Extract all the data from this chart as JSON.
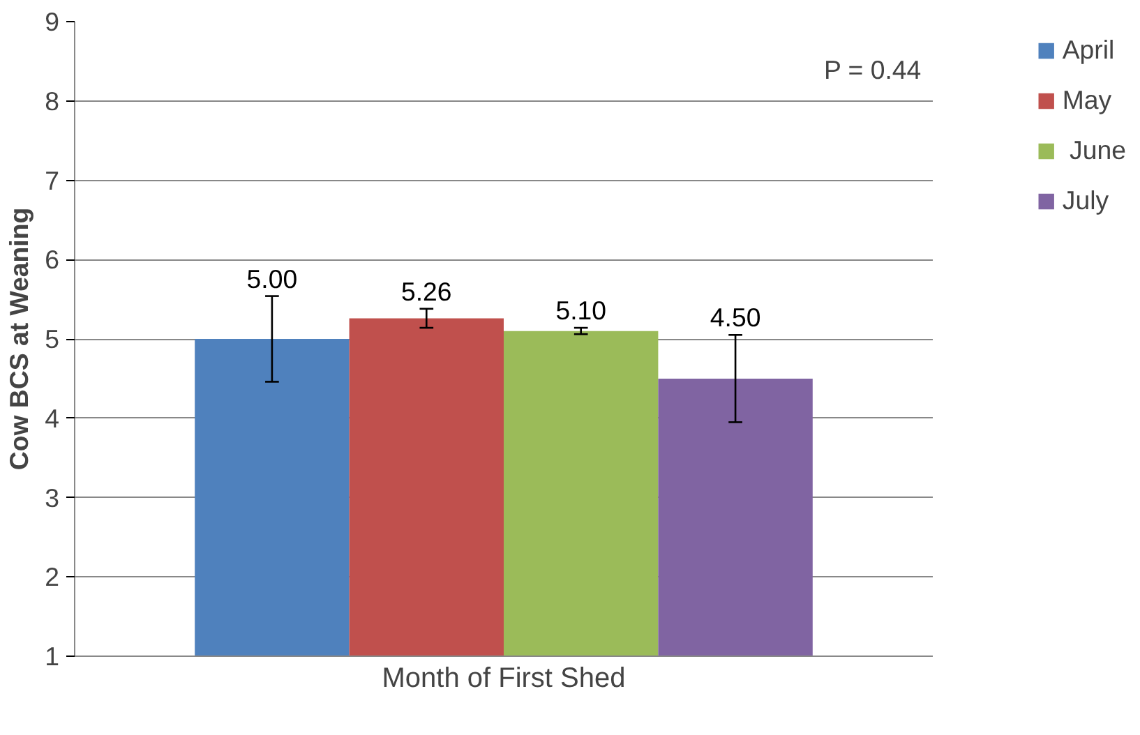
{
  "chart_data": {
    "type": "bar",
    "xlabel": "Month of First Shed",
    "ylabel": "Cow BCS at Weaning",
    "categories": [
      null
    ],
    "series": [
      {
        "name": "April",
        "color": "#4f81bd",
        "values": [
          5.0
        ],
        "errors": [
          0.54
        ],
        "value_labels": [
          "5.00"
        ]
      },
      {
        "name": "May",
        "color": "#c0504d",
        "values": [
          5.26
        ],
        "errors": [
          0.12
        ],
        "value_labels": [
          "5.26"
        ]
      },
      {
        "name": " June",
        "color": "#9bbb59",
        "values": [
          5.1
        ],
        "errors": [
          0.04
        ],
        "value_labels": [
          "5.10"
        ]
      },
      {
        "name": "July",
        "color": "#8064a2",
        "values": [
          4.5
        ],
        "errors": [
          0.55
        ],
        "value_labels": [
          "4.50"
        ]
      }
    ],
    "ylim": [
      1,
      9
    ],
    "yticks": [
      1,
      2,
      3,
      4,
      5,
      6,
      7,
      8,
      9
    ],
    "grid": "y",
    "legend": "right",
    "annotations": [
      "P = 0.44"
    ]
  }
}
